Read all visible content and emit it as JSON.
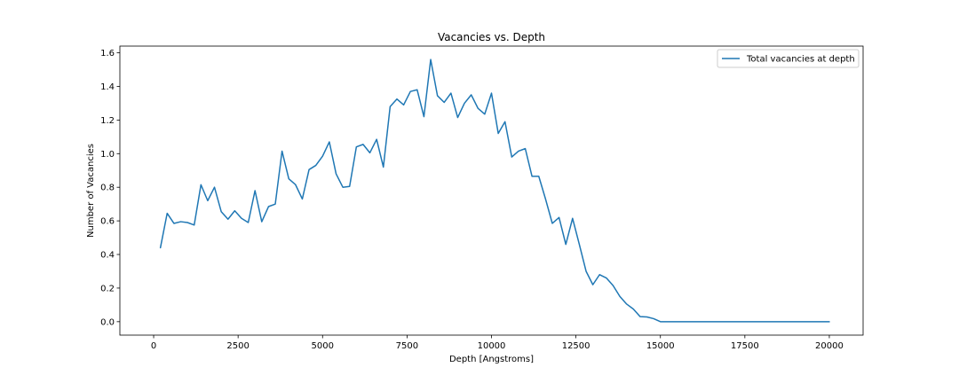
{
  "chart_data": {
    "type": "line",
    "title": "Vacancies vs. Depth",
    "xlabel": "Depth [Angstroms]",
    "ylabel": "Number of Vacancies",
    "xlim": [
      -1000,
      21000
    ],
    "ylim": [
      -0.08,
      1.64
    ],
    "xticks": [
      0,
      2500,
      5000,
      7500,
      10000,
      12500,
      15000,
      17500,
      20000
    ],
    "xtick_labels": [
      "0",
      "2500",
      "5000",
      "7500",
      "10000",
      "12500",
      "15000",
      "17500",
      "20000"
    ],
    "yticks": [
      0.0,
      0.2,
      0.4,
      0.6,
      0.8,
      1.0,
      1.2,
      1.4,
      1.6
    ],
    "ytick_labels": [
      "0.0",
      "0.2",
      "0.4",
      "0.6",
      "0.8",
      "1.0",
      "1.2",
      "1.4",
      "1.6"
    ],
    "grid": false,
    "legend_position": "top-right",
    "series": [
      {
        "name": "Total vacancies at depth",
        "color": "#1f77b4",
        "x": [
          200,
          400,
          600,
          800,
          1000,
          1200,
          1400,
          1600,
          1800,
          2000,
          2200,
          2400,
          2600,
          2800,
          3000,
          3200,
          3400,
          3600,
          3800,
          4000,
          4200,
          4400,
          4600,
          4800,
          5000,
          5200,
          5400,
          5600,
          5800,
          6000,
          6200,
          6400,
          6600,
          6800,
          7000,
          7200,
          7400,
          7600,
          7800,
          8000,
          8200,
          8400,
          8600,
          8800,
          9000,
          9200,
          9400,
          9600,
          9800,
          10000,
          10200,
          10400,
          10600,
          10800,
          11000,
          11200,
          11400,
          11600,
          11800,
          12000,
          12200,
          12400,
          12600,
          12800,
          13000,
          13200,
          13400,
          13600,
          13800,
          14000,
          14200,
          14400,
          14600,
          14800,
          15000,
          15200,
          15400,
          15600,
          15800,
          16000,
          16200,
          16400,
          16600,
          16800,
          17000,
          17200,
          17400,
          17600,
          17800,
          18000,
          18200,
          18400,
          18600,
          18800,
          19000,
          19200,
          19400,
          19600,
          19800,
          20000
        ],
        "values": [
          0.44,
          0.645,
          0.585,
          0.595,
          0.59,
          0.575,
          0.815,
          0.72,
          0.8,
          0.655,
          0.61,
          0.66,
          0.615,
          0.59,
          0.78,
          0.595,
          0.685,
          0.7,
          1.015,
          0.85,
          0.815,
          0.73,
          0.905,
          0.93,
          0.985,
          1.07,
          0.88,
          0.8,
          0.805,
          1.04,
          1.055,
          1.005,
          1.085,
          0.92,
          1.28,
          1.325,
          1.29,
          1.37,
          1.38,
          1.22,
          1.56,
          1.345,
          1.305,
          1.36,
          1.215,
          1.3,
          1.35,
          1.27,
          1.235,
          1.36,
          1.12,
          1.19,
          0.98,
          1.015,
          1.03,
          0.865,
          0.865,
          0.73,
          0.585,
          0.62,
          0.46,
          0.615,
          0.46,
          0.3,
          0.22,
          0.28,
          0.26,
          0.215,
          0.15,
          0.105,
          0.075,
          0.03,
          0.028,
          0.018,
          0.0,
          0.0,
          0.0,
          0.0,
          0.0,
          0.0,
          0.0,
          0.0,
          0.0,
          0.0,
          0.0,
          0.0,
          0.0,
          0.0,
          0.0,
          0.0,
          0.0,
          0.0,
          0.0,
          0.0,
          0.0,
          0.0,
          0.0,
          0.0,
          0.0,
          0.0
        ]
      }
    ]
  }
}
